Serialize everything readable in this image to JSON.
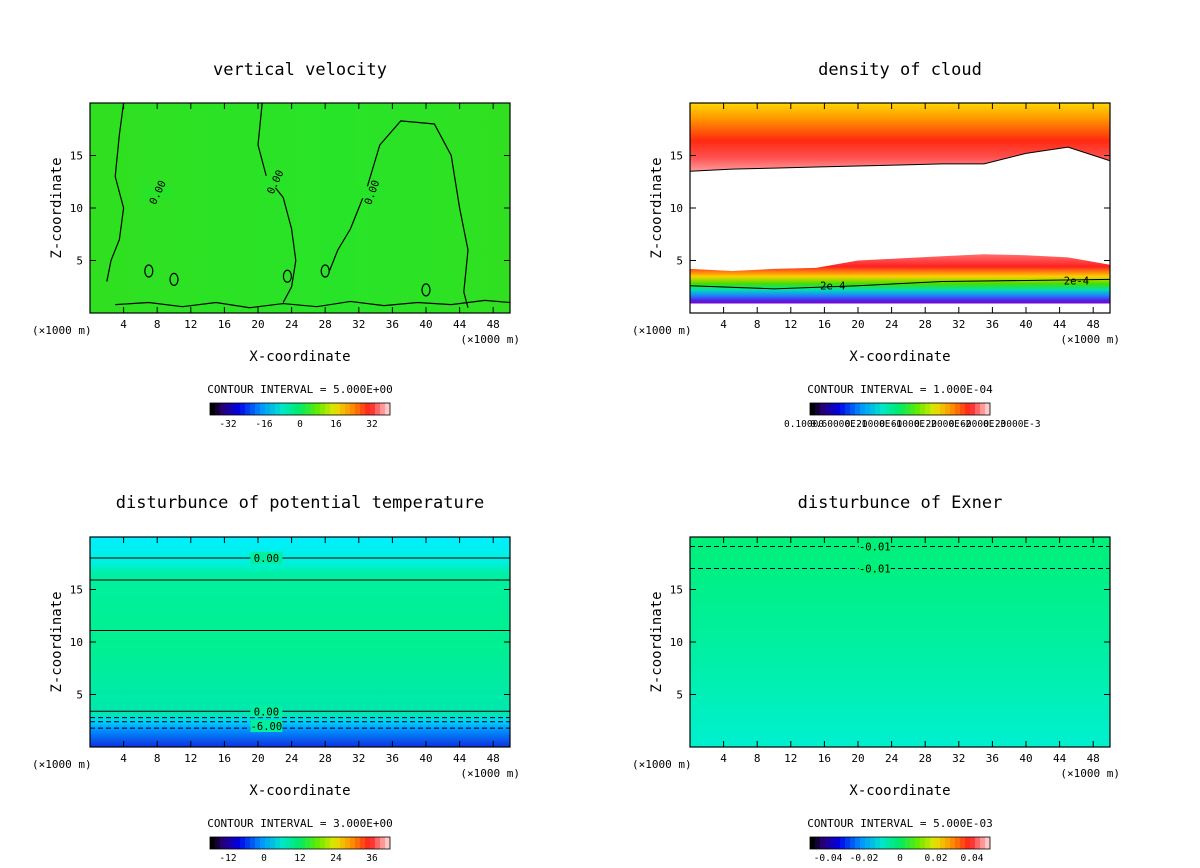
{
  "chart_data": [
    {
      "type": "heatmap",
      "title": "vertical velocity",
      "xlabel": "X-coordinate",
      "ylabel": "Z-coordinate",
      "x_unit": "(×1000 m)",
      "xlim": [
        0,
        50
      ],
      "ylim": [
        0,
        20
      ],
      "x_ticks": [
        4,
        8,
        12,
        16,
        20,
        24,
        28,
        32,
        36,
        40,
        44,
        48
      ],
      "y_ticks": [
        5,
        10,
        15
      ],
      "contour_interval": "CONTOUR INTERVAL = 5.000E+00",
      "contour_labels": [
        "0.00",
        "0.00",
        "0.00"
      ],
      "colorbar_ticks": [
        "-32",
        "-16",
        "0",
        "16",
        "32"
      ],
      "colorbar_range": [
        -40,
        40
      ],
      "background_color": "#20e020"
    },
    {
      "type": "heatmap",
      "title": "density of cloud",
      "xlabel": "X-coordinate",
      "ylabel": "Z-coordinate",
      "x_unit": "(×1000 m)",
      "xlim": [
        0,
        50
      ],
      "ylim": [
        0,
        20
      ],
      "x_ticks": [
        4,
        8,
        12,
        16,
        20,
        24,
        28,
        32,
        36,
        40,
        44,
        48
      ],
      "y_ticks": [
        5,
        10,
        15
      ],
      "contour_interval": "CONTOUR INTERVAL = 1.000E-04",
      "contour_labels": [
        "2e-4",
        "2e-4"
      ],
      "colorbar_ticks": [
        "0.10000",
        "0.60000E-1",
        "0.20000E-1",
        "0.60000E-2",
        "0.20000E-2",
        "0.60000E-3",
        "0.20000E-3"
      ],
      "upper_cloud_top": [
        19.5,
        19.5,
        19.5,
        19.5,
        19.5,
        19.5,
        19.5,
        19.5,
        19.5,
        19.5,
        19.5
      ],
      "upper_cloud_base": [
        13.5,
        13.7,
        13.8,
        13.9,
        14.0,
        14.1,
        14.2,
        14.2,
        15.2,
        15.8,
        14.5
      ],
      "lower_cloud_top": [
        4.2,
        4.0,
        4.2,
        4.3,
        5.0,
        5.2,
        5.4,
        5.6,
        5.5,
        5.3,
        4.6
      ],
      "x_samples": [
        0,
        5,
        10,
        15,
        20,
        25,
        30,
        35,
        40,
        45,
        50
      ]
    },
    {
      "type": "heatmap",
      "title": "disturbunce of potential temperature",
      "xlabel": "X-coordinate",
      "ylabel": "Z-coordinate",
      "x_unit": "(×1000 m)",
      "xlim": [
        0,
        50
      ],
      "ylim": [
        0,
        20
      ],
      "x_ticks": [
        4,
        8,
        12,
        16,
        20,
        24,
        28,
        32,
        36,
        40,
        44,
        48
      ],
      "y_ticks": [
        5,
        10,
        15
      ],
      "contour_interval": "CONTOUR INTERVAL = 3.000E+00",
      "contour_labels": [
        "0.00",
        "0.00",
        "-6.00"
      ],
      "contour_levels_z": [
        18.0,
        15.9,
        11.1,
        3.4,
        2.8,
        2.4,
        1.8
      ],
      "colorbar_ticks": [
        "-12",
        "0",
        "12",
        "24",
        "36"
      ],
      "colorbar_range": [
        -18,
        42
      ]
    },
    {
      "type": "heatmap",
      "title": "disturbunce of Exner",
      "xlabel": "X-coordinate",
      "ylabel": "Z-coordinate",
      "x_unit": "(×1000 m)",
      "xlim": [
        0,
        50
      ],
      "ylim": [
        0,
        20
      ],
      "x_ticks": [
        4,
        8,
        12,
        16,
        20,
        24,
        28,
        32,
        36,
        40,
        44,
        48
      ],
      "y_ticks": [
        5,
        10,
        15
      ],
      "contour_interval": "CONTOUR INTERVAL = 5.000E-03",
      "contour_labels": [
        "-0.01",
        "-0.01"
      ],
      "contour_levels_z": [
        19.1,
        17.0
      ],
      "colorbar_ticks": [
        "-0.04",
        "-0.02",
        "0",
        "0.02",
        "0.04"
      ],
      "colorbar_range": [
        -0.05,
        0.05
      ]
    }
  ]
}
